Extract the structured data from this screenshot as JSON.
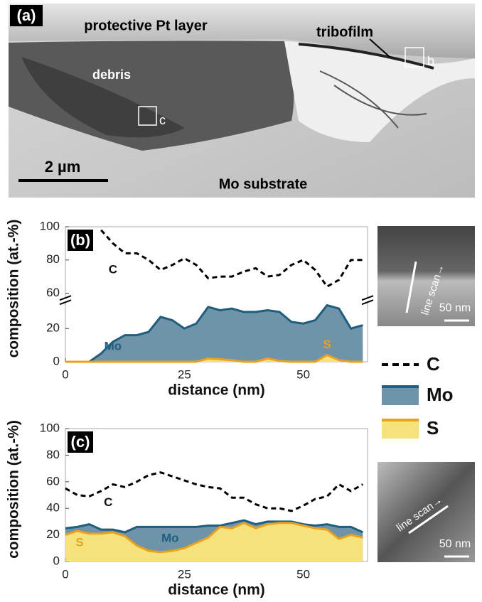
{
  "micrograph": {
    "panel_label": "(a)",
    "pt_layer": "protective Pt layer",
    "tribofilm": "tribofilm",
    "debris": "debris",
    "substrate": "Mo substrate",
    "scale_bar": "2 µm",
    "box_b": "b",
    "box_c": "c"
  },
  "chart_data": [
    {
      "type": "line",
      "panel_label": "(b)",
      "x_label": "distance (nm)",
      "y_label": "composition (at.-%)",
      "x": [
        0,
        2.5,
        5,
        7.5,
        10,
        12.5,
        15,
        17.5,
        20,
        22.5,
        25,
        27.5,
        30,
        32.5,
        35,
        37.5,
        40,
        42.5,
        45,
        47.5,
        50,
        52.5,
        55,
        57.5,
        60,
        62.5
      ],
      "xlim": [
        0,
        63.5
      ],
      "xticks": [
        0,
        25,
        50
      ],
      "ylim": [
        0,
        100
      ],
      "yticks": [
        0,
        20,
        60,
        80,
        100
      ],
      "axis_break": [
        35,
        58
      ],
      "series": [
        {
          "name": "C",
          "color": "#000000",
          "style": "dashed",
          "values": [
            null,
            null,
            null,
            98,
            90,
            84,
            84,
            80,
            74,
            77,
            81,
            77,
            69,
            70,
            70,
            73,
            75,
            70,
            71,
            77,
            80,
            74,
            64,
            68,
            80,
            80
          ]
        },
        {
          "name": "Mo",
          "color": "#1f5e7e",
          "fill": "#6f93a8",
          "style": "area",
          "values": [
            0,
            0,
            0,
            5,
            12,
            16,
            16,
            18,
            27,
            25,
            20,
            23,
            33,
            31,
            32,
            30,
            30,
            31,
            30,
            24,
            23,
            25,
            34,
            32,
            20,
            22
          ]
        },
        {
          "name": "S",
          "color": "#e8a21c",
          "fill": "#f6e27c",
          "style": "area",
          "values": [
            0,
            0,
            0,
            0,
            0,
            0,
            0,
            0,
            0,
            0,
            0,
            0,
            2,
            1.5,
            1,
            0,
            0,
            2,
            0.5,
            0,
            0,
            0,
            4,
            1,
            0,
            0
          ]
        }
      ],
      "inset": {
        "scan_label": "line scan→",
        "scale_label": "50 nm"
      }
    },
    {
      "type": "line",
      "panel_label": "(c)",
      "x_label": "distance (nm)",
      "y_label": "composition (at.-%)",
      "x": [
        0,
        2.5,
        5,
        7.5,
        10,
        12.5,
        15,
        17.5,
        20,
        22.5,
        25,
        27.5,
        30,
        32.5,
        35,
        37.5,
        40,
        42.5,
        45,
        47.5,
        50,
        52.5,
        55,
        57.5,
        60,
        62.5
      ],
      "xlim": [
        0,
        63.5
      ],
      "xticks": [
        0,
        25,
        50
      ],
      "ylim": [
        0,
        100
      ],
      "yticks": [
        0,
        20,
        40,
        60,
        80,
        100
      ],
      "series": [
        {
          "name": "C",
          "color": "#000000",
          "style": "dashed",
          "values": [
            55,
            50,
            49,
            53,
            58,
            56,
            60,
            65,
            67,
            64,
            61,
            58,
            56,
            55,
            48,
            48,
            43,
            40,
            40,
            38,
            42,
            47,
            49,
            58,
            53,
            58
          ]
        },
        {
          "name": "Mo",
          "color": "#1f5e7e",
          "fill": "#6f93a8",
          "style": "area",
          "values": [
            25,
            26,
            28,
            24,
            24,
            22,
            26,
            26,
            26,
            26,
            26,
            26,
            27,
            27,
            29,
            31,
            28,
            30,
            30,
            30,
            28,
            27,
            28,
            26,
            26,
            22
          ]
        },
        {
          "name": "S",
          "color": "#e8a21c",
          "fill": "#f6e27c",
          "style": "area",
          "values": [
            20,
            23,
            21,
            21,
            22,
            19,
            12,
            8,
            7,
            8,
            10,
            14,
            18,
            26,
            25,
            29,
            25,
            28,
            29,
            29,
            27,
            25,
            24,
            17,
            20,
            18
          ]
        }
      ],
      "inset": {
        "scan_label": "line scan→",
        "scale_label": "50 nm"
      }
    }
  ]
}
